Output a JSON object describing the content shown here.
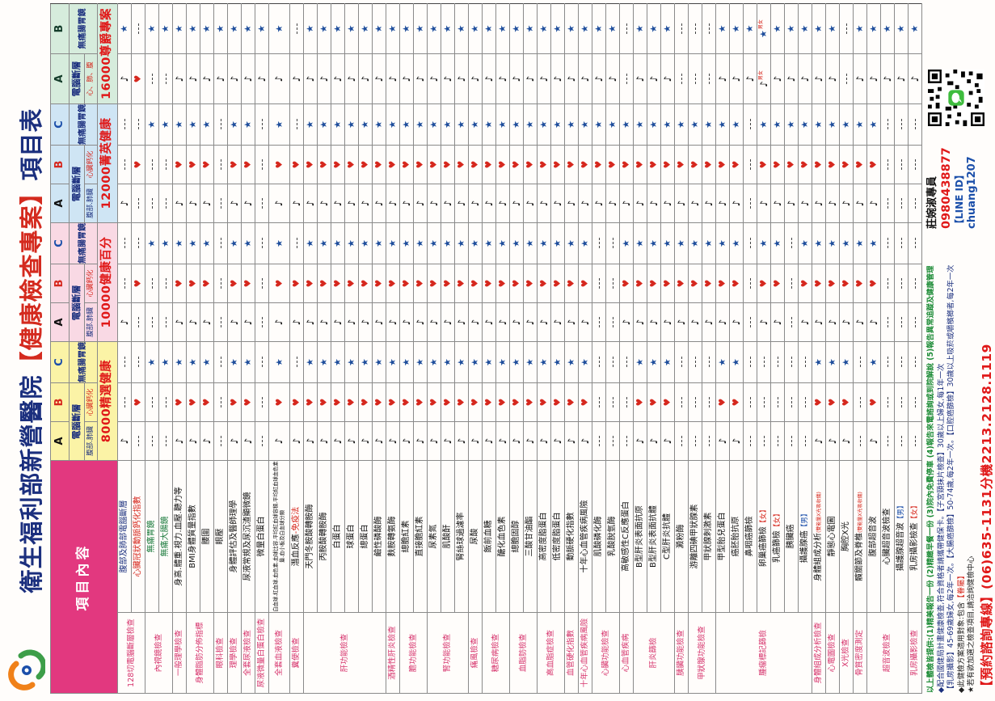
{
  "title": {
    "prefix": "衛生福利部新營醫院",
    "highlight": "【健康檢查專案】",
    "suffix": "項目表"
  },
  "corner_header": "項目內容",
  "symbols": {
    "n": "♪",
    "h": "♥",
    "s": "★"
  },
  "letter_colors": {
    "A": "#111111",
    "B": "#d6281e",
    "C": "#1b4faa"
  },
  "plans": [
    {
      "price": "8000精選健康",
      "bg": "#fbf3a6",
      "group_ct": "電腦斷層",
      "group_scope": "無痛腸胃鏡",
      "cols": [
        {
          "letter": "A",
          "sub": "腹部.肺臟",
          "subRed": false
        },
        {
          "letter": "B",
          "sub": "心臟鈣化",
          "subRed": true
        },
        {
          "letter": "C"
        }
      ]
    },
    {
      "price": "10000健康百分",
      "bg": "#f9d9e4",
      "group_ct": "電腦斷層",
      "group_scope": "無痛腸胃鏡",
      "cols": [
        {
          "letter": "A",
          "sub": "腹部.肺臟",
          "subRed": false
        },
        {
          "letter": "B",
          "sub": "心臟鈣化",
          "subRed": true
        },
        {
          "letter": "C"
        }
      ]
    },
    {
      "price": "12000菁英健康",
      "bg": "#cfe5f4",
      "group_ct": "電腦斷層",
      "group_scope": "無痛腸胃鏡",
      "cols": [
        {
          "letter": "A",
          "sub": "腹部.肺臟",
          "subRed": false
        },
        {
          "letter": "B",
          "sub": "心臟鈣化",
          "subRed": true
        },
        {
          "letter": "C"
        }
      ]
    },
    {
      "price": "16000尊爵專案",
      "bg": "#d6ecdc",
      "group_ct": "電腦斷層",
      "group_scope": "無痛腸胃鏡",
      "cols": [
        {
          "letter": "A",
          "sub": "心、肺、腹",
          "subRed": true
        },
        {
          "letter": "B"
        }
      ]
    }
  ],
  "categories": [
    {
      "label": "128切電腦斷層檢查",
      "span": 2
    },
    {
      "label": "內視鏡檢查",
      "span": 2
    },
    {
      "label": "一般理學檢查",
      "span": 1
    },
    {
      "label": "身體脂肪分佈指標",
      "span": 2
    },
    {
      "label": "眼科檢查",
      "span": 1
    },
    {
      "label": "理學檢查",
      "span": 1
    },
    {
      "label": "全套尿液檢查",
      "span": 1
    },
    {
      "label": "尿液微量白蛋白檢查",
      "span": 1
    },
    {
      "label": "全套血液檢查",
      "span": 1
    },
    {
      "label": "糞便檢查",
      "span": 1
    },
    {
      "label": "肝功能檢查",
      "span": 6
    },
    {
      "label": "酒精性肝炎檢查",
      "span": 1
    },
    {
      "label": "膽功能檢查",
      "span": 2
    },
    {
      "label": "腎功能檢查",
      "span": 3
    },
    {
      "label": "痛風檢查",
      "span": 1
    },
    {
      "label": "糖尿病檢查",
      "span": 2
    },
    {
      "label": "血脂肪檢查",
      "span": 2
    },
    {
      "label": "高血脂症檢查",
      "span": 2
    },
    {
      "label": "血管硬化指數",
      "span": 1
    },
    {
      "label": "十年心血管疾病風險",
      "span": 1
    },
    {
      "label": "心臟功能檢查",
      "span": 2
    },
    {
      "label": "心血管疾病",
      "span": 1
    },
    {
      "label": "肝炎篩檢",
      "span": 3
    },
    {
      "label": "胰臟功能檢查",
      "span": 1
    },
    {
      "label": "甲狀腺功能檢查",
      "span": 2
    },
    {
      "label": "腫瘤標記篩檢",
      "span": 7
    },
    {
      "label": "身體組成分析檢查",
      "span": 1
    },
    {
      "label": "心電圖檢查",
      "span": 1
    },
    {
      "label": "X光檢查",
      "span": 1
    },
    {
      "label": "骨質密度測定",
      "span": 1
    },
    {
      "label": "超音波檢查",
      "span": 3
    },
    {
      "label": "乳房攝影檢查",
      "span": 1
    }
  ],
  "items": [
    {
      "name": "腹部及肺部電腦斷層",
      "c": "blue",
      "cells": [
        "n",
        "-",
        "-",
        "n",
        "-",
        "-",
        "n",
        "-",
        "-",
        "n",
        "s"
      ]
    },
    {
      "name": "心臟冠狀動脈鈣化指數",
      "c": "red",
      "cells": [
        "-",
        "h",
        "-",
        "-",
        "h",
        "-",
        "-",
        "h",
        "-",
        "h",
        "-"
      ]
    },
    {
      "name": "無痛胃鏡",
      "c": "green",
      "cells": [
        "-",
        "-",
        "s",
        "-",
        "-",
        "s",
        "-",
        "-",
        "s",
        "-",
        "s"
      ]
    },
    {
      "name": "無痛大腸鏡",
      "c": "green",
      "cells": [
        "-",
        "-",
        "s",
        "-",
        "-",
        "s",
        "-",
        "-",
        "s",
        "-",
        "s"
      ]
    },
    {
      "name": "身高.體重.視力.血壓.聽力等",
      "cells": [
        "n",
        "h",
        "s",
        "n",
        "h",
        "s",
        "n",
        "h",
        "s",
        "n",
        "s"
      ]
    },
    {
      "name": "BMI身體質量指數",
      "cells": [
        "n",
        "h",
        "s",
        "n",
        "h",
        "s",
        "n",
        "h",
        "s",
        "n",
        "s"
      ]
    },
    {
      "name": "腰圍",
      "cells": [
        "n",
        "h",
        "s",
        "n",
        "h",
        "s",
        "n",
        "h",
        "s",
        "n",
        "s"
      ]
    },
    {
      "name": "眼壓",
      "cells": [
        "-",
        "-",
        "-",
        "-",
        "-",
        "-",
        "-",
        "-",
        "-",
        "n",
        "s"
      ]
    },
    {
      "name": "身體評估及醫師理學",
      "cells": [
        "n",
        "h",
        "s",
        "n",
        "h",
        "s",
        "n",
        "h",
        "s",
        "n",
        "s"
      ]
    },
    {
      "name": "尿液常規及尿沉渣顯微鏡",
      "cells": [
        "n",
        "h",
        "s",
        "n",
        "h",
        "s",
        "n",
        "h",
        "s",
        "n",
        "s"
      ]
    },
    {
      "name": "微量白蛋白",
      "cells": [
        "-",
        "-",
        "-",
        "-",
        "-",
        "-",
        "-",
        "-",
        "-",
        "n",
        "s"
      ]
    },
    {
      "name": "白血球.紅血球.血色素.血球比容.平均紅血球容積.平均紅血球血色素量.血小板及白血球分類",
      "tiny": true,
      "cells": [
        "n",
        "h",
        "s",
        "n",
        "h",
        "s",
        "n",
        "h",
        "s",
        "n",
        "s"
      ]
    },
    {
      "name": "潛血反應",
      "suffix": "-免疫法",
      "cells": [
        "n",
        "h",
        "-",
        "n",
        "h",
        "-",
        "n",
        "h",
        "-",
        "n",
        "-"
      ]
    },
    {
      "name": "天門冬胺酸轉胺酶",
      "cells": [
        "n",
        "h",
        "s",
        "n",
        "h",
        "s",
        "n",
        "h",
        "s",
        "n",
        "s"
      ]
    },
    {
      "name": "丙胺酸轉胺酶",
      "cells": [
        "n",
        "h",
        "s",
        "n",
        "h",
        "s",
        "n",
        "h",
        "s",
        "n",
        "s"
      ]
    },
    {
      "name": "白蛋白",
      "cells": [
        "n",
        "h",
        "s",
        "n",
        "h",
        "s",
        "n",
        "h",
        "s",
        "n",
        "s"
      ]
    },
    {
      "name": "球蛋白",
      "cells": [
        "n",
        "h",
        "s",
        "n",
        "h",
        "s",
        "n",
        "h",
        "s",
        "n",
        "s"
      ]
    },
    {
      "name": "總蛋白",
      "cells": [
        "n",
        "h",
        "s",
        "n",
        "h",
        "s",
        "n",
        "h",
        "s",
        "n",
        "s"
      ]
    },
    {
      "name": "鹼性磷酸酶",
      "cells": [
        "n",
        "h",
        "s",
        "n",
        "h",
        "s",
        "n",
        "h",
        "s",
        "n",
        "s"
      ]
    },
    {
      "name": "麩胺轉氨酶",
      "cells": [
        "n",
        "h",
        "s",
        "n",
        "h",
        "s",
        "n",
        "h",
        "s",
        "n",
        "s"
      ]
    },
    {
      "name": "總膽紅素",
      "cells": [
        "n",
        "h",
        "s",
        "n",
        "h",
        "s",
        "n",
        "h",
        "s",
        "n",
        "s"
      ]
    },
    {
      "name": "直接膽紅素",
      "cells": [
        "n",
        "h",
        "s",
        "n",
        "h",
        "s",
        "n",
        "h",
        "s",
        "n",
        "s"
      ]
    },
    {
      "name": "尿素氮",
      "cells": [
        "n",
        "h",
        "s",
        "n",
        "h",
        "s",
        "n",
        "h",
        "s",
        "n",
        "s"
      ]
    },
    {
      "name": "肌酸酐",
      "cells": [
        "n",
        "h",
        "s",
        "n",
        "h",
        "s",
        "n",
        "h",
        "s",
        "n",
        "s"
      ]
    },
    {
      "name": "腎絲球過濾率",
      "cells": [
        "n",
        "h",
        "s",
        "n",
        "h",
        "s",
        "n",
        "h",
        "s",
        "n",
        "s"
      ]
    },
    {
      "name": "尿酸",
      "cells": [
        "n",
        "h",
        "s",
        "n",
        "h",
        "s",
        "n",
        "h",
        "s",
        "n",
        "s"
      ]
    },
    {
      "name": "飯前血糖",
      "cells": [
        "n",
        "h",
        "s",
        "n",
        "h",
        "s",
        "n",
        "h",
        "s",
        "n",
        "s"
      ]
    },
    {
      "name": "醣化血色素",
      "cells": [
        "n",
        "h",
        "s",
        "n",
        "h",
        "s",
        "n",
        "h",
        "s",
        "n",
        "s"
      ]
    },
    {
      "name": "總膽固醇",
      "cells": [
        "n",
        "h",
        "s",
        "n",
        "h",
        "s",
        "n",
        "h",
        "s",
        "n",
        "s"
      ]
    },
    {
      "name": "三酸甘油酯",
      "cells": [
        "n",
        "h",
        "s",
        "n",
        "h",
        "s",
        "n",
        "h",
        "s",
        "n",
        "s"
      ]
    },
    {
      "name": "高密度脂蛋白",
      "cells": [
        "n",
        "h",
        "s",
        "n",
        "h",
        "s",
        "n",
        "h",
        "s",
        "n",
        "s"
      ]
    },
    {
      "name": "低密度脂蛋白",
      "cells": [
        "n",
        "h",
        "s",
        "n",
        "h",
        "s",
        "n",
        "h",
        "s",
        "n",
        "s"
      ]
    },
    {
      "name": "動脈硬化指數",
      "cells": [
        "n",
        "h",
        "s",
        "n",
        "h",
        "s",
        "n",
        "h",
        "s",
        "n",
        "s"
      ]
    },
    {
      "name": "十年心血管疾病風險",
      "cells": [
        "n",
        "h",
        "s",
        "n",
        "h",
        "s",
        "n",
        "h",
        "s",
        "n",
        "s"
      ]
    },
    {
      "name": "肌酸磷化酶",
      "cells": [
        "-",
        "-",
        "-",
        "-",
        "-",
        "-",
        "n",
        "h",
        "s",
        "n",
        "s"
      ]
    },
    {
      "name": "乳酸脫氫酶",
      "cells": [
        "-",
        "-",
        "-",
        "-",
        "-",
        "-",
        "n",
        "h",
        "s",
        "n",
        "s"
      ]
    },
    {
      "name": "高敏感性C反應蛋白",
      "cells": [
        "-",
        "-",
        "-",
        "n",
        "h",
        "s",
        "n",
        "h",
        "s",
        "-",
        "-"
      ]
    },
    {
      "name": "B型肝炎表面抗原",
      "cells": [
        "n",
        "h",
        "s",
        "n",
        "h",
        "s",
        "n",
        "h",
        "s",
        "n",
        "s"
      ]
    },
    {
      "name": "B型肝炎表面抗體",
      "cells": [
        "n",
        "h",
        "s",
        "n",
        "h",
        "s",
        "n",
        "h",
        "s",
        "n",
        "s"
      ]
    },
    {
      "name": "C型肝炎抗體",
      "cells": [
        "n",
        "h",
        "s",
        "n",
        "h",
        "s",
        "n",
        "h",
        "s",
        "n",
        "s"
      ]
    },
    {
      "name": "澱粉酶",
      "cells": [
        "-",
        "-",
        "-",
        "n",
        "h",
        "s",
        "n",
        "h",
        "s",
        "-",
        "-"
      ]
    },
    {
      "name": "游離四碘甲狀腺素",
      "cells": [
        "-",
        "-",
        "-",
        "n",
        "h",
        "s",
        "n",
        "h",
        "s",
        "-",
        "-"
      ]
    },
    {
      "name": "甲狀腺刺激素",
      "cells": [
        "-",
        "-",
        "-",
        "n",
        "h",
        "s",
        "n",
        "h",
        "s",
        "-",
        "-"
      ]
    },
    {
      "name": "甲型胎兒蛋白",
      "cells": [
        "n",
        "h",
        "s",
        "n",
        "h",
        "s",
        "n",
        "h",
        "s",
        "n",
        "s"
      ]
    },
    {
      "name": "癌胚胎抗原",
      "cells": [
        "n",
        "h",
        "s",
        "n",
        "h",
        "s",
        "n",
        "h",
        "s",
        "n",
        "s"
      ]
    },
    {
      "name": "鼻咽癌篩檢",
      "cells": [
        "-",
        "-",
        "-",
        "-",
        "-",
        "-",
        "-",
        "-",
        "-",
        "n",
        "s"
      ]
    },
    {
      "name": "卵巢癌篩檢",
      "tag": "【女】",
      "cells": [
        "-",
        "-",
        "-",
        "n",
        "h",
        "s",
        "n",
        "h",
        "s",
        "n+男女",
        "s+男女"
      ]
    },
    {
      "name": "乳癌篩檢",
      "tag": "【女】",
      "cells": [
        "-",
        "-",
        "-",
        "n",
        "h",
        "s",
        "n",
        "h",
        "s",
        "n",
        "s"
      ]
    },
    {
      "name": "胰臟癌",
      "cells": [
        "-",
        "-",
        "-",
        "-",
        "-",
        "-",
        "n",
        "h",
        "s",
        "n",
        "s"
      ]
    },
    {
      "name": "攝護腺癌",
      "tag": "【男】",
      "cells": [
        "-",
        "-",
        "-",
        "n",
        "h",
        "s",
        "n",
        "h",
        "s",
        "n",
        "s"
      ]
    },
    {
      "name": "身體組成分析",
      "note": "(雙能量X光吸收儀)",
      "cells": [
        "n",
        "h",
        "s",
        "n",
        "h",
        "s",
        "n",
        "h",
        "s",
        "n",
        "s"
      ]
    },
    {
      "name": "靜態心電圖",
      "cells": [
        "n",
        "h",
        "s",
        "n",
        "h",
        "s",
        "n",
        "h",
        "s",
        "n",
        "s"
      ]
    },
    {
      "name": "胸腔X光",
      "cells": [
        "n",
        "h",
        "s",
        "n",
        "h",
        "s",
        "n",
        "h",
        "s",
        "-",
        "-"
      ]
    },
    {
      "name": "髖關節及脊椎",
      "note": "(雙能量X光吸收儀)",
      "cells": [
        "-",
        "-",
        "-",
        "n",
        "h",
        "s",
        "n",
        "h",
        "s",
        "n",
        "s"
      ]
    },
    {
      "name": "腹部超音波",
      "cells": [
        "n",
        "h",
        "s",
        "n",
        "h",
        "s",
        "n",
        "h",
        "s",
        "n",
        "s"
      ]
    },
    {
      "name": "心臟超音波檢查",
      "cells": [
        "-",
        "-",
        "-",
        "-",
        "-",
        "-",
        "-",
        "-",
        "-",
        "n",
        "s"
      ]
    },
    {
      "name": "攝護腺超音波",
      "tag": "【男】",
      "cells": [
        "-",
        "-",
        "-",
        "-",
        "-",
        "-",
        "-",
        "-",
        "-",
        "n",
        "s"
      ]
    },
    {
      "name": "乳房攝影檢查",
      "tag": "【女】",
      "cells": [
        "-",
        "-",
        "-",
        "-",
        "-",
        "-",
        "-",
        "-",
        "-",
        "n",
        "s"
      ]
    }
  ],
  "notes": [
    {
      "text": "以上體檢皆提供:(1)精美報告一份 (2)精緻早餐一份 (3)院內免費停車 (4)報告來電諮詢或到院解說 (5)報告異常追蹤及健康管理",
      "style": "green"
    },
    {
      "text": "◆配合國健局計畫健康檢查,符合資格者請攜帶健保卡。【子宮頸抹片檢查】30歲以上婦女,每1年一次",
      "style": "blue"
    },
    {
      "text": "【乳房攝影】45-69歲婦女,每2年一次。【大腸癌篩檢】50-74歲,每2年一次。【口腔癌篩檢】30歲以上吸菸或嚼檳榔者,每2年一次",
      "style": "blue"
    },
    {
      "text": "◆此健檢方案適用對象:包含",
      "highlight": "【眷屬】",
      "style": "black"
    },
    {
      "text": "★若有欲加選之檢查項目,請洽詢健檢中心",
      "style": "black"
    },
    {
      "text": "【預約諮詢專線】(06)635-1131分機2213.2128.1119",
      "style": "phone"
    }
  ],
  "contact": {
    "name": "莊婉淑專員",
    "phone": "0980438877",
    "line_label": "【LINE ID】",
    "line_id": "chuang1207"
  }
}
